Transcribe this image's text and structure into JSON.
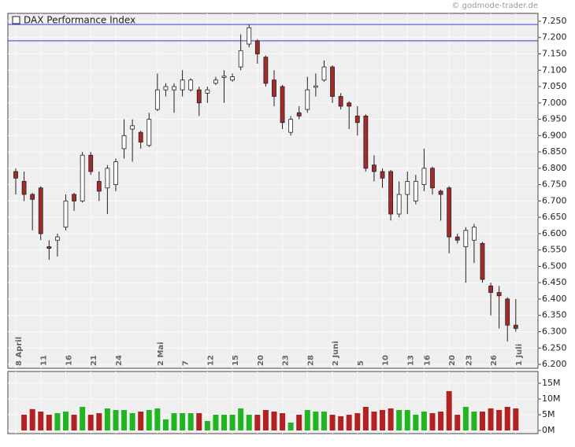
{
  "chart_data": {
    "type": "candlestick",
    "title": "DAX Performance Index",
    "watermark": "© godmode-trader.de",
    "categories": [
      "8 April",
      null,
      null,
      "11",
      null,
      null,
      "16",
      null,
      null,
      "21",
      null,
      null,
      "24",
      null,
      null,
      null,
      null,
      "2 Mai",
      null,
      null,
      "7",
      null,
      null,
      "12",
      null,
      null,
      "15",
      null,
      null,
      "20",
      null,
      null,
      "23",
      null,
      null,
      "28",
      null,
      null,
      "2 Juni",
      null,
      null,
      "5",
      null,
      null,
      "10",
      null,
      null,
      "13",
      null,
      "16",
      null,
      null,
      "20",
      null,
      "23",
      null,
      null,
      "26",
      null,
      null,
      "1 Juli"
    ],
    "open": [
      6790,
      6760,
      6720,
      6740,
      6560,
      6580,
      6620,
      6720,
      6700,
      6840,
      6760,
      6740,
      6750,
      6860,
      6920,
      6910,
      6870,
      6980,
      7040,
      7040,
      7040,
      7040,
      7040,
      7030,
      7060,
      7078,
      7070,
      7110,
      7180,
      7190,
      7140,
      7070,
      7050,
      6910,
      6970,
      6980,
      7048,
      7070,
      7110,
      7020,
      7000,
      6960,
      6960,
      6810,
      6790,
      6790,
      6660,
      6720,
      6700,
      6750,
      6800,
      6730,
      6740,
      6590,
      6560,
      6580,
      6570,
      6440,
      6420,
      6400,
      6320
    ],
    "high": [
      6800,
      6790,
      6725,
      6745,
      6580,
      6600,
      6720,
      6725,
      6850,
      6850,
      6790,
      6810,
      6830,
      6950,
      6950,
      6915,
      6970,
      7090,
      7060,
      7060,
      7100,
      7075,
      7050,
      7050,
      7080,
      7100,
      7090,
      7210,
      7240,
      7195,
      7145,
      7100,
      7055,
      6960,
      6990,
      7080,
      7090,
      7130,
      7115,
      7030,
      7005,
      6990,
      6965,
      6840,
      6800,
      6795,
      6760,
      6790,
      6780,
      6860,
      6805,
      6735,
      6745,
      6600,
      6620,
      6630,
      6575,
      6450,
      6440,
      6405,
      6400
    ],
    "low": [
      6720,
      6700,
      6610,
      6580,
      6520,
      6530,
      6610,
      6670,
      6695,
      6780,
      6700,
      6660,
      6730,
      6830,
      6820,
      6860,
      6865,
      6975,
      7020,
      6970,
      7020,
      7035,
      6960,
      7000,
      7055,
      7000,
      7065,
      7100,
      7170,
      7120,
      7050,
      6990,
      6920,
      6900,
      6950,
      6970,
      7020,
      7065,
      7000,
      6980,
      6920,
      6900,
      6790,
      6760,
      6740,
      6640,
      6650,
      6660,
      6690,
      6730,
      6720,
      6640,
      6540,
      6570,
      6450,
      6510,
      6450,
      6350,
      6310,
      6270,
      6300
    ],
    "close": [
      6770,
      6720,
      6705,
      6600,
      6555,
      6590,
      6700,
      6700,
      6840,
      6790,
      6730,
      6800,
      6820,
      6900,
      6930,
      6880,
      6950,
      7040,
      7050,
      7050,
      7070,
      7070,
      7000,
      7040,
      7070,
      7082,
      7080,
      7160,
      7230,
      7150,
      7060,
      7020,
      6940,
      6950,
      6960,
      7040,
      7052,
      7110,
      7020,
      6990,
      6990,
      6940,
      6800,
      6790,
      6770,
      6660,
      6720,
      6760,
      6760,
      6800,
      6740,
      6720,
      6590,
      6580,
      6610,
      6620,
      6460,
      6420,
      6410,
      6320,
      6310
    ],
    "volume": [
      null,
      5000000,
      6800000,
      6000000,
      5000000,
      5500000,
      6000000,
      5000000,
      7500000,
      5000000,
      5500000,
      7000000,
      6500000,
      6500000,
      5500000,
      6000000,
      6500000,
      7000000,
      3500000,
      5500000,
      5500000,
      5500000,
      5500000,
      3000000,
      5000000,
      5000000,
      5000000,
      7000000,
      5000000,
      5000000,
      6500000,
      6000000,
      5500000,
      2500000,
      5000000,
      6500000,
      6000000,
      6000000,
      5000000,
      4500000,
      5000000,
      5500000,
      7500000,
      6000000,
      6500000,
      7000000,
      6500000,
      6500000,
      5000000,
      6000000,
      5500000,
      6000000,
      12500000,
      5000000,
      7500000,
      6000000,
      6000000,
      7000000,
      6500000,
      7500000,
      7000000
    ],
    "up_color": "#ffffff",
    "down_color": "#a52a2a",
    "volume_up_color": "#22b522",
    "volume_down_color": "#b22222",
    "hlines": [
      7240,
      7190
    ],
    "hline_color": "#3344cc",
    "ylim": [
      6188,
      7274
    ],
    "yticks": [
      {
        "value": 6200,
        "label": "6.200"
      },
      {
        "value": 6250,
        "label": "6.250"
      },
      {
        "value": 6300,
        "label": "6.300"
      },
      {
        "value": 6350,
        "label": "6.350"
      },
      {
        "value": 6400,
        "label": "6.400"
      },
      {
        "value": 6450,
        "label": "6.450"
      },
      {
        "value": 6500,
        "label": "6.500"
      },
      {
        "value": 6550,
        "label": "6.550"
      },
      {
        "value": 6600,
        "label": "6.600"
      },
      {
        "value": 6650,
        "label": "6.650"
      },
      {
        "value": 6700,
        "label": "6.700"
      },
      {
        "value": 6750,
        "label": "6.750"
      },
      {
        "value": 6800,
        "label": "6.800"
      },
      {
        "value": 6850,
        "label": "6.850"
      },
      {
        "value": 6900,
        "label": "6.900"
      },
      {
        "value": 6950,
        "label": "6.950"
      },
      {
        "value": 7000,
        "label": "7.000"
      },
      {
        "value": 7050,
        "label": "7.050"
      },
      {
        "value": 7100,
        "label": "7.100"
      },
      {
        "value": 7150,
        "label": "7.150"
      },
      {
        "value": 7200,
        "label": "7.200"
      },
      {
        "value": 7250,
        "label": "7.250"
      }
    ],
    "y2lim": [
      -1000000,
      18750000
    ],
    "y2ticks": [
      {
        "value": 0,
        "label": "0M"
      },
      {
        "value": 5000000,
        "label": "5M"
      },
      {
        "value": 10000000,
        "label": "10M"
      },
      {
        "value": 15000000,
        "label": "15M"
      }
    ],
    "grid": true
  }
}
